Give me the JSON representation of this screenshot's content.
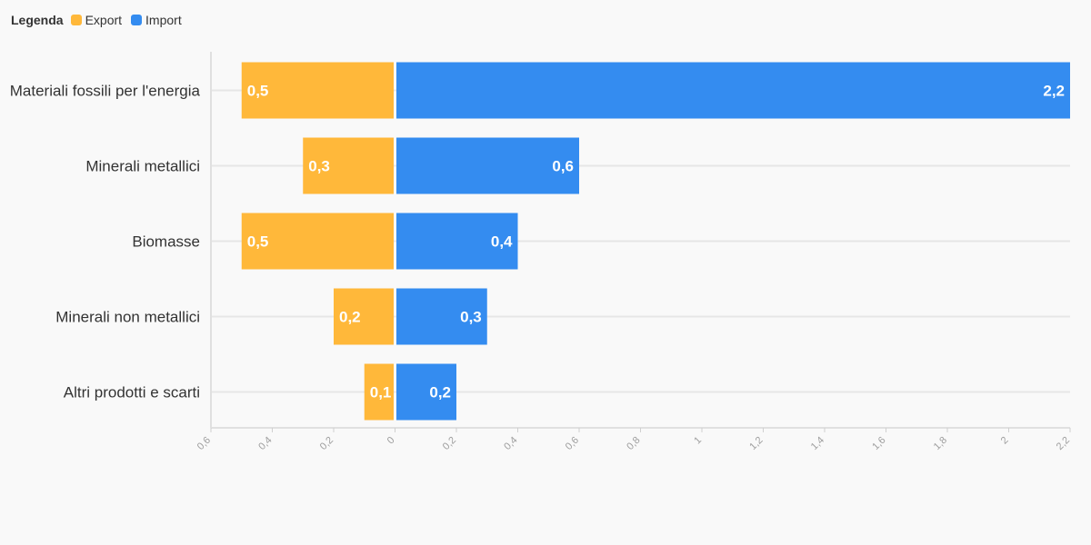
{
  "legend": {
    "title": "Legenda",
    "items": [
      {
        "label": "Export",
        "color": "#ffb83a"
      },
      {
        "label": "Import",
        "color": "#348cf0"
      }
    ]
  },
  "chart_data": {
    "type": "bar",
    "orientation": "horizontal-diverging",
    "title": "",
    "xlabel": "",
    "ylabel": "",
    "categories": [
      "Materiali fossili per l'energia",
      "Minerali metallici",
      "Biomasse",
      "Minerali non metallici",
      "Altri prodotti e scarti"
    ],
    "series": [
      {
        "name": "Export",
        "color": "#ffb83a",
        "values": [
          0.5,
          0.3,
          0.5,
          0.2,
          0.1
        ],
        "labels": [
          "0,5",
          "0,3",
          "0,5",
          "0,2",
          "0,1"
        ]
      },
      {
        "name": "Import",
        "color": "#348cf0",
        "values": [
          2.2,
          0.6,
          0.4,
          0.3,
          0.2
        ],
        "labels": [
          "2,2",
          "0,6",
          "0,4",
          "0,3",
          "0,2"
        ]
      }
    ],
    "xlim": [
      -0.6,
      2.2
    ],
    "ticks": [
      -0.6,
      -0.4,
      -0.2,
      0,
      0.2,
      0.4,
      0.6,
      0.8,
      1,
      1.2,
      1.4,
      1.6,
      1.8,
      2,
      2.2
    ],
    "tick_labels": [
      "0,6",
      "0,4",
      "0,2",
      "0",
      "0,2",
      "0,4",
      "0,6",
      "0,8",
      "1",
      "1,2",
      "1,4",
      "1,6",
      "1,8",
      "2",
      "2,2"
    ],
    "grid": true,
    "legend_position": "top-left"
  }
}
